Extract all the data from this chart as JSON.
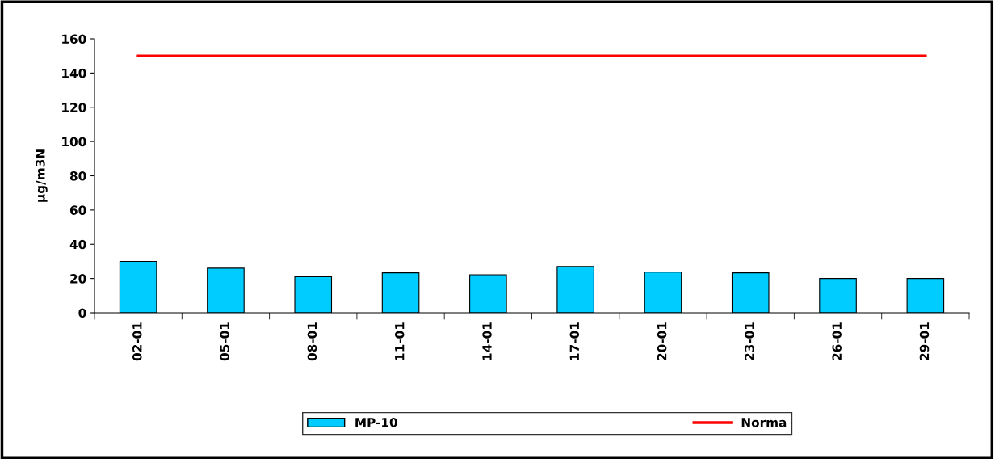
{
  "chart_data": {
    "type": "bar",
    "ylabel": "µg/m3N",
    "categories": [
      "02-01",
      "05-01",
      "08-01",
      "11-01",
      "14-01",
      "17-01",
      "20-01",
      "23-01",
      "26-01",
      "29-01"
    ],
    "series": [
      {
        "name": "MP-10",
        "color": "#00ccff",
        "values": [
          30,
          26,
          21,
          23.3,
          22.2,
          27,
          23.8,
          23.3,
          20,
          20
        ]
      },
      {
        "name": "Norma",
        "type": "line",
        "color": "#ff0000",
        "values": [
          150,
          150,
          150,
          150,
          150,
          150,
          150,
          150,
          150,
          150
        ]
      }
    ],
    "ylim": [
      0,
      160
    ],
    "yticks": [
      0,
      20,
      40,
      60,
      80,
      100,
      120,
      140,
      160
    ],
    "grid": false,
    "legend": "bottom",
    "marker": "none"
  }
}
